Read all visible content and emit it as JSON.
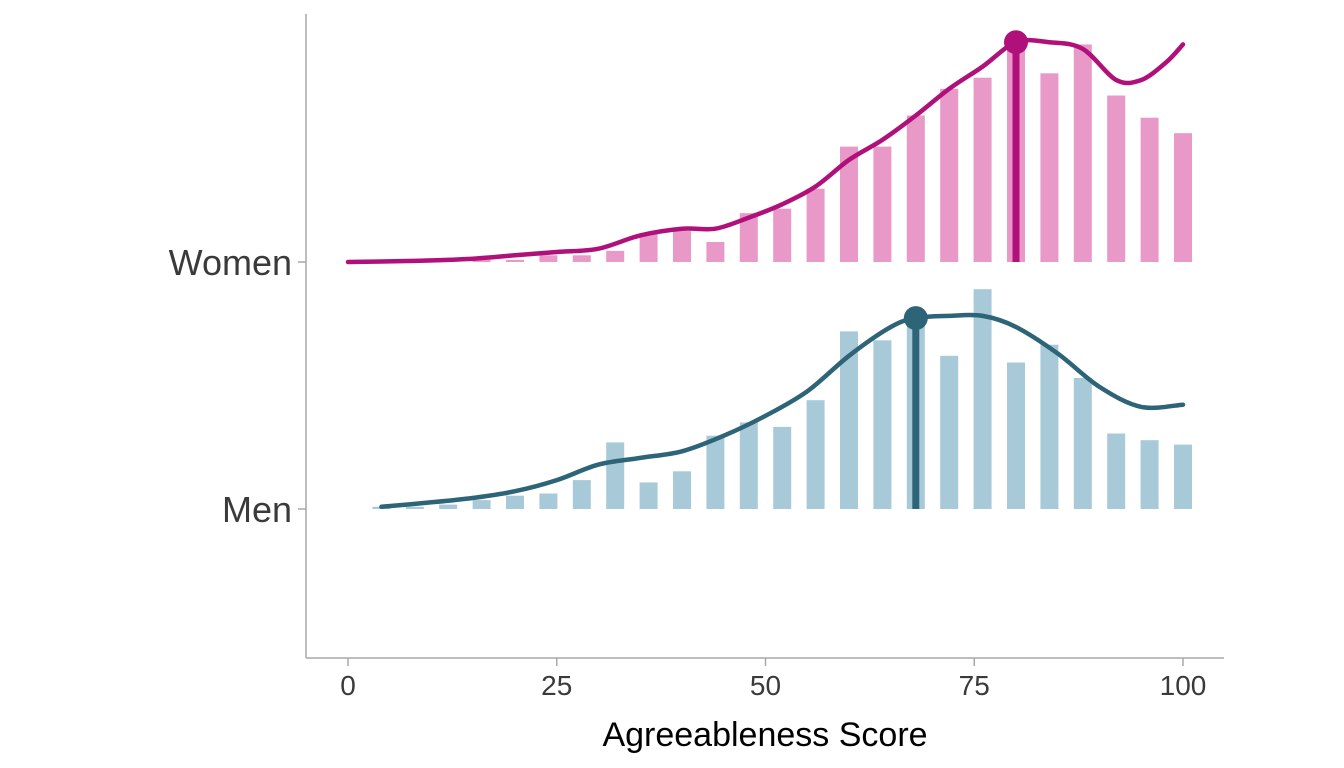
{
  "chart_data": {
    "type": "bar",
    "title": "",
    "xlabel": "Agreeableness Score",
    "ylabel": "",
    "xlim": [
      -10,
      105
    ],
    "x_ticks": [
      0,
      25,
      50,
      75,
      100
    ],
    "x_tick_labels": [
      "0",
      "25",
      "50",
      "75",
      "100"
    ],
    "grid": false,
    "legend": "none",
    "categories": [
      "Women",
      "Men"
    ],
    "series": [
      {
        "name": "Women",
        "bar_color": "#e899c8",
        "line_color": "#b0107a",
        "bins": [
          16,
          20,
          24,
          28,
          32,
          36,
          40,
          44,
          48,
          52,
          56,
          60,
          64,
          68,
          72,
          76,
          80,
          84,
          88,
          92,
          96,
          100
        ],
        "bar_density": [
          0.01,
          0.01,
          0.03,
          0.03,
          0.05,
          0.13,
          0.14,
          0.09,
          0.22,
          0.24,
          0.33,
          0.52,
          0.52,
          0.66,
          0.78,
          0.83,
          0.97,
          0.85,
          0.98,
          0.75,
          0.65,
          0.58
        ],
        "density_x": [
          0,
          8,
          15,
          20,
          25,
          30,
          35,
          40,
          44,
          48,
          52,
          56,
          60,
          64,
          68,
          72,
          76,
          80,
          84,
          88,
          92,
          95,
          98,
          100
        ],
        "density_y": [
          0.0,
          0.005,
          0.015,
          0.03,
          0.045,
          0.06,
          0.12,
          0.15,
          0.15,
          0.2,
          0.26,
          0.34,
          0.46,
          0.55,
          0.66,
          0.78,
          0.88,
          0.99,
          0.99,
          0.96,
          0.82,
          0.82,
          0.9,
          0.98
        ],
        "marker_x": 80,
        "marker_y": 0.99
      },
      {
        "name": "Men",
        "bar_color": "#a8cad8",
        "line_color": "#2e6478",
        "bins": [
          4,
          8,
          12,
          16,
          20,
          24,
          28,
          32,
          36,
          40,
          44,
          48,
          52,
          56,
          60,
          64,
          68,
          72,
          76,
          80,
          84,
          88,
          92,
          96,
          100
        ],
        "bar_density": [
          0.01,
          0.01,
          0.02,
          0.04,
          0.06,
          0.07,
          0.13,
          0.3,
          0.12,
          0.17,
          0.33,
          0.39,
          0.37,
          0.49,
          0.8,
          0.76,
          0.84,
          0.69,
          0.99,
          0.66,
          0.74,
          0.59,
          0.34,
          0.31,
          0.29
        ],
        "density_x": [
          4,
          10,
          15,
          20,
          25,
          30,
          35,
          40,
          45,
          50,
          55,
          60,
          65,
          68,
          72,
          76,
          80,
          85,
          90,
          95,
          100
        ],
        "density_y": [
          0.01,
          0.03,
          0.05,
          0.08,
          0.13,
          0.2,
          0.23,
          0.26,
          0.33,
          0.42,
          0.53,
          0.69,
          0.82,
          0.86,
          0.87,
          0.87,
          0.82,
          0.7,
          0.55,
          0.46,
          0.47
        ],
        "marker_x": 68,
        "marker_y": 0.86
      }
    ]
  }
}
